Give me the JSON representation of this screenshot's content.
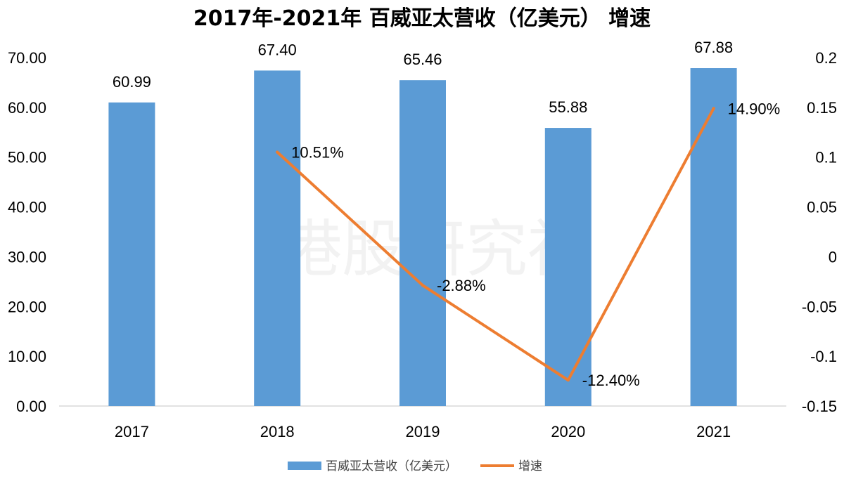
{
  "watermark": "港股研究社",
  "chart_data": {
    "type": "bar",
    "title": "2017年-2021年 百威亚太营收（亿美元） 增速",
    "categories": [
      "2017",
      "2018",
      "2019",
      "2020",
      "2021"
    ],
    "series": [
      {
        "name": "百威亚太营收（亿美元）",
        "type": "bar",
        "axis": "left",
        "color": "#5b9bd5",
        "values": [
          60.99,
          67.4,
          65.46,
          55.88,
          67.88
        ],
        "labels": [
          "60.99",
          "67.40",
          "65.46",
          "55.88",
          "67.88"
        ]
      },
      {
        "name": "增速",
        "type": "line",
        "axis": "right",
        "color": "#ed7d31",
        "values": [
          null,
          0.1051,
          -0.0288,
          -0.124,
          0.149
        ],
        "labels": [
          "",
          "10.51%",
          "-2.88%",
          "-12.40%",
          "14.90%"
        ]
      }
    ],
    "y_left": {
      "min": 0,
      "max": 70,
      "ticks": [
        0,
        10,
        20,
        30,
        40,
        50,
        60,
        70
      ],
      "tick_labels": [
        "0.00",
        "10.00",
        "20.00",
        "30.00",
        "40.00",
        "50.00",
        "60.00",
        "70.00"
      ]
    },
    "y_right": {
      "min": -0.15,
      "max": 0.2,
      "ticks": [
        -0.15,
        -0.1,
        -0.05,
        0,
        0.05,
        0.1,
        0.15,
        0.2
      ],
      "tick_labels": [
        "-0.15",
        "-0.1",
        "-0.05",
        "0",
        "0.05",
        "0.1",
        "0.15",
        "0.2"
      ]
    },
    "grid": false,
    "legend": "bottom-center"
  }
}
